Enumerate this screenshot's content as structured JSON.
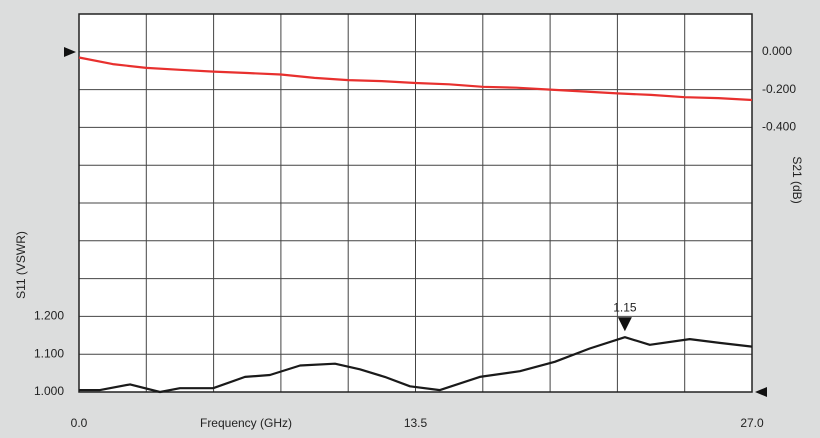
{
  "chart_data": {
    "type": "line",
    "x_label": "Frequency (GHz)",
    "y_label": "S11 (VSWR)",
    "y2_label": "S21 (dB)",
    "xlim": [
      0,
      27
    ],
    "xticks": [
      {
        "value": 0,
        "label": "0.0"
      },
      13.5,
      {
        "value": 27,
        "label": "27.0"
      }
    ],
    "ylim": [
      1.0,
      2.0
    ],
    "yticks": [
      {
        "value": 1.0,
        "label": "1.000"
      },
      {
        "value": 1.1,
        "label": "1.100"
      },
      {
        "value": 1.2,
        "label": "1.200"
      }
    ],
    "y2lim": [
      -1.8,
      0.2
    ],
    "y2ticks": [
      {
        "value": 0,
        "label": "0.000"
      },
      {
        "value": -0.2,
        "label": "-0.200"
      },
      {
        "value": -0.4,
        "label": "-0.400"
      }
    ],
    "grid": {
      "x_divisions": 10,
      "y_divisions": 10
    },
    "series": [
      {
        "name": "S21",
        "color": "#e8302e",
        "axis": "y2",
        "x": [
          0,
          1.35,
          2.7,
          4.05,
          5.4,
          6.75,
          8.1,
          9.45,
          10.8,
          12.15,
          13.5,
          14.85,
          16.2,
          17.55,
          18.9,
          20.25,
          21.6,
          22.95,
          24.3,
          25.65,
          27
        ],
        "values": [
          -0.03,
          -0.065,
          -0.085,
          -0.095,
          -0.105,
          -0.112,
          -0.12,
          -0.138,
          -0.15,
          -0.155,
          -0.165,
          -0.172,
          -0.185,
          -0.19,
          -0.2,
          -0.21,
          -0.22,
          -0.228,
          -0.24,
          -0.245,
          -0.255
        ]
      },
      {
        "name": "S11",
        "color": "#1a1a1a",
        "axis": "y",
        "x": [
          0,
          0.84,
          2.05,
          3.25,
          4.05,
          5.38,
          6.66,
          7.66,
          8.87,
          10.27,
          11.27,
          12.27,
          13.28,
          14.48,
          16.08,
          17.69,
          19.09,
          20.49,
          21.9,
          22.9,
          24.5,
          25.7,
          27
        ],
        "values": [
          1.005,
          1.005,
          1.02,
          1.0,
          1.01,
          1.01,
          1.04,
          1.045,
          1.07,
          1.075,
          1.06,
          1.04,
          1.015,
          1.005,
          1.04,
          1.055,
          1.08,
          1.115,
          1.145,
          1.125,
          1.14,
          1.13,
          1.12
        ]
      }
    ],
    "annotations": [
      {
        "x": 21.9,
        "value": 1.15
      }
    ]
  }
}
